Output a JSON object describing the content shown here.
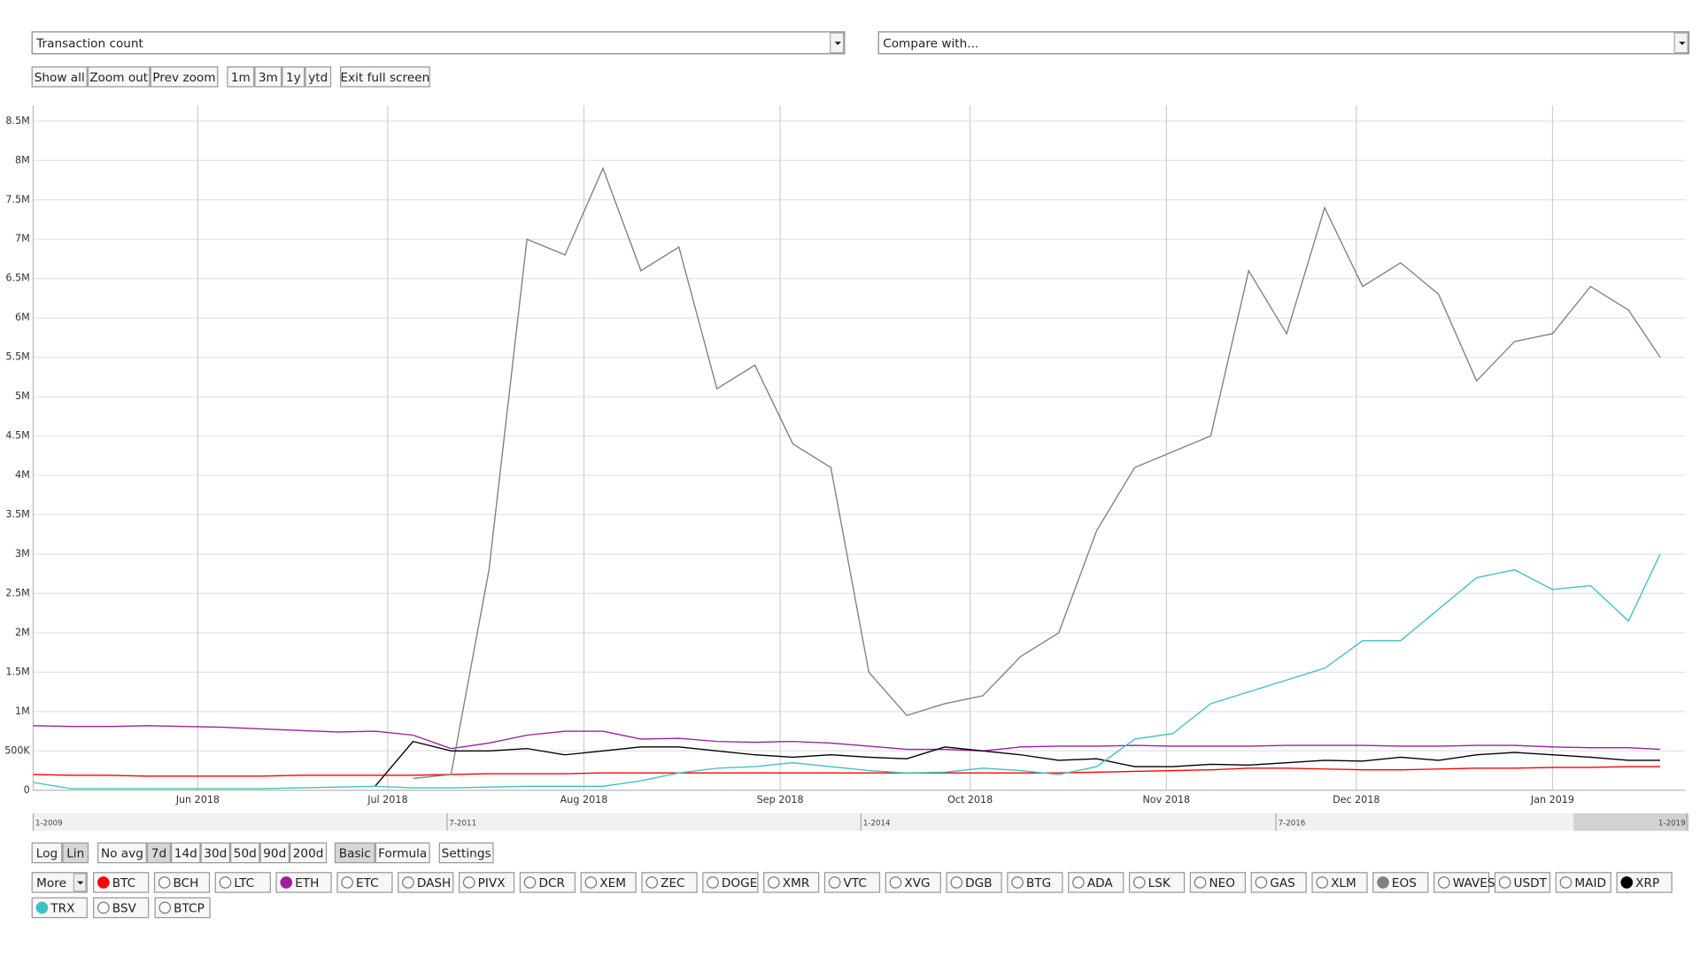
{
  "ui": {
    "metric_select": "Transaction count",
    "compare_select": "Compare with...",
    "zoom_buttons": [
      "Show all",
      "Zoom out",
      "Prev zoom"
    ],
    "range_buttons": [
      "1m",
      "3m",
      "1y",
      "ytd"
    ],
    "fullscreen_button": "Exit full screen",
    "scale_buttons": [
      "Log",
      "Lin"
    ],
    "average_buttons": [
      "No avg",
      "7d",
      "14d",
      "30d",
      "50d",
      "90d",
      "200d"
    ],
    "mode_buttons": [
      "Basic",
      "Formula"
    ],
    "settings_button": "Settings",
    "more_select": "More",
    "coins": [
      "BTC",
      "BCH",
      "LTC",
      "ETH",
      "ETC",
      "DASH",
      "PIVX",
      "DCR",
      "XEM",
      "ZEC",
      "DOGE",
      "XMR",
      "VTC",
      "XVG",
      "DGB",
      "BTG",
      "ADA",
      "LSK",
      "NEO",
      "GAS",
      "XLM",
      "EOS",
      "WAVES",
      "USDT",
      "MAID",
      "XRP",
      "TRX",
      "BSV",
      "BTCP"
    ],
    "navigator_labels": [
      "1-2009",
      "7-2011",
      "1-2014",
      "7-2016",
      "1-2019"
    ]
  },
  "chart_data": {
    "type": "line",
    "log_scale": false,
    "grid": true,
    "x": [
      "2018-05-06",
      "2018-05-12",
      "2018-05-18",
      "2018-05-24",
      "2018-05-30",
      "2018-06-05",
      "2018-06-11",
      "2018-06-17",
      "2018-06-23",
      "2018-06-29",
      "2018-07-05",
      "2018-07-11",
      "2018-07-17",
      "2018-07-23",
      "2018-07-29",
      "2018-08-04",
      "2018-08-10",
      "2018-08-16",
      "2018-08-22",
      "2018-08-28",
      "2018-09-03",
      "2018-09-09",
      "2018-09-15",
      "2018-09-21",
      "2018-09-27",
      "2018-10-03",
      "2018-10-09",
      "2018-10-15",
      "2018-10-21",
      "2018-10-27",
      "2018-11-02",
      "2018-11-08",
      "2018-11-14",
      "2018-11-20",
      "2018-11-26",
      "2018-12-02",
      "2018-12-08",
      "2018-12-14",
      "2018-12-20",
      "2018-12-26",
      "2019-01-01",
      "2019-01-07",
      "2019-01-13",
      "2019-01-18"
    ],
    "xlim": [
      "2018-05-06",
      "2019-01-22"
    ],
    "xticks": [
      {
        "value": "2018-06-01",
        "label": "Jun 2018"
      },
      {
        "value": "2018-07-01",
        "label": "Jul 2018"
      },
      {
        "value": "2018-08-01",
        "label": "Aug 2018"
      },
      {
        "value": "2018-09-01",
        "label": "Sep 2018"
      },
      {
        "value": "2018-10-01",
        "label": "Oct 2018"
      },
      {
        "value": "2018-11-01",
        "label": "Nov 2018"
      },
      {
        "value": "2018-12-01",
        "label": "Dec 2018"
      },
      {
        "value": "2019-01-01",
        "label": "Jan 2019"
      }
    ],
    "ylim": [
      0,
      8700000
    ],
    "yticks": [
      0,
      {
        "value": 500000,
        "label": "500K"
      },
      {
        "value": 1000000,
        "label": "1M"
      },
      {
        "value": 1500000,
        "label": "1.5M"
      },
      {
        "value": 2000000,
        "label": "2M"
      },
      {
        "value": 2500000,
        "label": "2.5M"
      },
      {
        "value": 3000000,
        "label": "3M"
      },
      {
        "value": 3500000,
        "label": "3.5M"
      },
      {
        "value": 4000000,
        "label": "4M"
      },
      {
        "value": 4500000,
        "label": "4.5M"
      },
      {
        "value": 5000000,
        "label": "5M"
      },
      {
        "value": 5500000,
        "label": "5.5M"
      },
      {
        "value": 6000000,
        "label": "6M"
      },
      {
        "value": 6500000,
        "label": "6.5M"
      },
      {
        "value": 7000000,
        "label": "7M"
      },
      {
        "value": 7500000,
        "label": "7.5M"
      },
      {
        "value": 8000000,
        "label": "8M"
      },
      {
        "value": 8500000,
        "label": "8.5M"
      }
    ],
    "series": [
      {
        "name": "BTC",
        "color": "#ff0000",
        "values": [
          200000,
          190000,
          190000,
          180000,
          180000,
          180000,
          180000,
          190000,
          190000,
          190000,
          190000,
          200000,
          210000,
          210000,
          210000,
          220000,
          220000,
          220000,
          220000,
          220000,
          220000,
          220000,
          220000,
          220000,
          220000,
          220000,
          220000,
          220000,
          230000,
          240000,
          250000,
          260000,
          280000,
          280000,
          270000,
          260000,
          260000,
          270000,
          280000,
          280000,
          290000,
          290000,
          300000,
          300000
        ]
      },
      {
        "name": "ETH",
        "color": "#9a1fa0",
        "values": [
          820000,
          810000,
          810000,
          820000,
          810000,
          800000,
          780000,
          760000,
          740000,
          750000,
          700000,
          530000,
          600000,
          700000,
          750000,
          750000,
          650000,
          660000,
          620000,
          610000,
          620000,
          600000,
          560000,
          520000,
          520000,
          500000,
          550000,
          560000,
          560000,
          570000,
          560000,
          560000,
          560000,
          570000,
          570000,
          570000,
          560000,
          560000,
          570000,
          570000,
          550000,
          540000,
          540000,
          520000
        ]
      },
      {
        "name": "EOS",
        "color": "#808080",
        "values": [
          null,
          null,
          null,
          null,
          null,
          null,
          null,
          null,
          null,
          null,
          150000,
          200000,
          2800000,
          7000000,
          6800000,
          7900000,
          6600000,
          6900000,
          5100000,
          5400000,
          4400000,
          4100000,
          1500000,
          950000,
          1100000,
          1200000,
          1700000,
          2000000,
          3300000,
          4100000,
          4300000,
          4500000,
          6600000,
          5800000,
          7400000,
          6400000,
          6700000,
          6300000,
          5200000,
          5700000,
          5800000,
          6400000,
          6100000,
          5500000
        ]
      },
      {
        "name": "XRP",
        "color": "#000000",
        "values": [
          null,
          null,
          null,
          null,
          null,
          null,
          null,
          null,
          null,
          50000,
          620000,
          500000,
          500000,
          530000,
          450000,
          500000,
          550000,
          550000,
          500000,
          450000,
          420000,
          450000,
          420000,
          400000,
          550000,
          500000,
          450000,
          380000,
          400000,
          300000,
          300000,
          330000,
          320000,
          350000,
          380000,
          370000,
          420000,
          380000,
          450000,
          480000,
          450000,
          420000,
          380000,
          380000
        ]
      },
      {
        "name": "TRX",
        "color": "#3fc1c1",
        "values": [
          100000,
          20000,
          20000,
          20000,
          20000,
          20000,
          20000,
          30000,
          40000,
          50000,
          30000,
          30000,
          40000,
          50000,
          50000,
          50000,
          120000,
          220000,
          280000,
          300000,
          350000,
          300000,
          250000,
          220000,
          230000,
          280000,
          250000,
          200000,
          300000,
          650000,
          720000,
          1100000,
          1250000,
          1400000,
          1550000,
          1900000,
          1900000,
          2300000,
          2700000,
          2800000,
          2550000,
          2600000,
          2150000,
          3000000
        ]
      }
    ]
  }
}
